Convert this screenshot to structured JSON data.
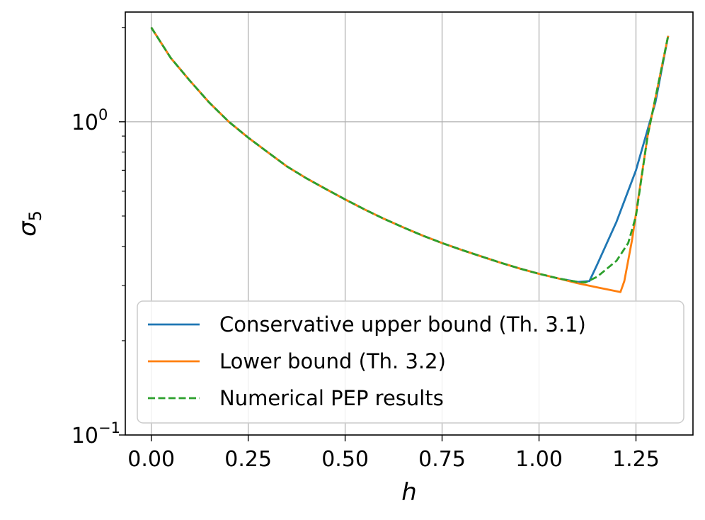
{
  "chart_data": {
    "type": "line",
    "xlabel": "h",
    "ylabel": "σ",
    "ylabel_sub": "5",
    "xlim": [
      -0.067,
      1.397
    ],
    "ylim": [
      0.1,
      2.24
    ],
    "yscale": "log",
    "grid": true,
    "legend_placement": "lower-left",
    "x_ticks": [
      0.0,
      0.25,
      0.5,
      0.75,
      1.0,
      1.25
    ],
    "x_tick_labels": [
      "0.00",
      "0.25",
      "0.50",
      "0.75",
      "1.00",
      "1.25"
    ],
    "y_ticks": [
      {
        "value": 0.1,
        "base": "10",
        "exp": "−1"
      },
      {
        "value": 1.0,
        "base": "10",
        "exp": "0"
      }
    ],
    "y_minor_ticks": [
      0.2,
      0.3,
      0.4,
      0.5,
      0.6,
      0.7,
      0.8,
      0.9,
      2.0
    ],
    "series": [
      {
        "name": "Conservative upper bound (Th. 3.1)",
        "color": "#1f77b4",
        "dash": "solid",
        "x": [
          0.0,
          0.05,
          0.1,
          0.15,
          0.2,
          0.25,
          0.3,
          0.35,
          0.4,
          0.45,
          0.5,
          0.55,
          0.6,
          0.65,
          0.7,
          0.75,
          0.8,
          0.85,
          0.9,
          0.95,
          1.0,
          1.05,
          1.1,
          1.13,
          1.15,
          1.2,
          1.25,
          1.3,
          1.333
        ],
        "y": [
          2.0,
          1.6,
          1.35,
          1.15,
          1.0,
          0.89,
          0.8,
          0.72,
          0.66,
          0.61,
          0.565,
          0.525,
          0.49,
          0.46,
          0.433,
          0.41,
          0.39,
          0.372,
          0.355,
          0.34,
          0.327,
          0.316,
          0.308,
          0.31,
          0.35,
          0.48,
          0.7,
          1.15,
          1.88
        ]
      },
      {
        "name": "Lower bound (Th. 3.2)",
        "color": "#ff7f0e",
        "dash": "solid",
        "x": [
          0.0,
          0.05,
          0.1,
          0.15,
          0.2,
          0.25,
          0.3,
          0.35,
          0.4,
          0.45,
          0.5,
          0.55,
          0.6,
          0.65,
          0.7,
          0.75,
          0.8,
          0.85,
          0.9,
          0.95,
          1.0,
          1.05,
          1.1,
          1.15,
          1.21,
          1.22,
          1.24,
          1.28,
          1.333
        ],
        "y": [
          2.0,
          1.6,
          1.35,
          1.15,
          1.0,
          0.89,
          0.8,
          0.72,
          0.66,
          0.61,
          0.565,
          0.525,
          0.49,
          0.46,
          0.433,
          0.41,
          0.39,
          0.372,
          0.355,
          0.34,
          0.327,
          0.316,
          0.305,
          0.296,
          0.286,
          0.31,
          0.42,
          0.9,
          1.88
        ]
      },
      {
        "name": "Numerical PEP results",
        "color": "#2ca02c",
        "dash": "dashed",
        "x": [
          0.0,
          0.05,
          0.1,
          0.15,
          0.2,
          0.25,
          0.3,
          0.35,
          0.4,
          0.45,
          0.5,
          0.55,
          0.6,
          0.65,
          0.7,
          0.75,
          0.8,
          0.85,
          0.9,
          0.95,
          1.0,
          1.05,
          1.1,
          1.12,
          1.15,
          1.2,
          1.23,
          1.25,
          1.28,
          1.333
        ],
        "y": [
          2.0,
          1.6,
          1.35,
          1.15,
          1.0,
          0.89,
          0.8,
          0.72,
          0.66,
          0.61,
          0.565,
          0.525,
          0.49,
          0.46,
          0.433,
          0.41,
          0.39,
          0.372,
          0.355,
          0.34,
          0.327,
          0.316,
          0.308,
          0.307,
          0.32,
          0.36,
          0.41,
          0.5,
          0.9,
          1.88
        ]
      }
    ]
  }
}
